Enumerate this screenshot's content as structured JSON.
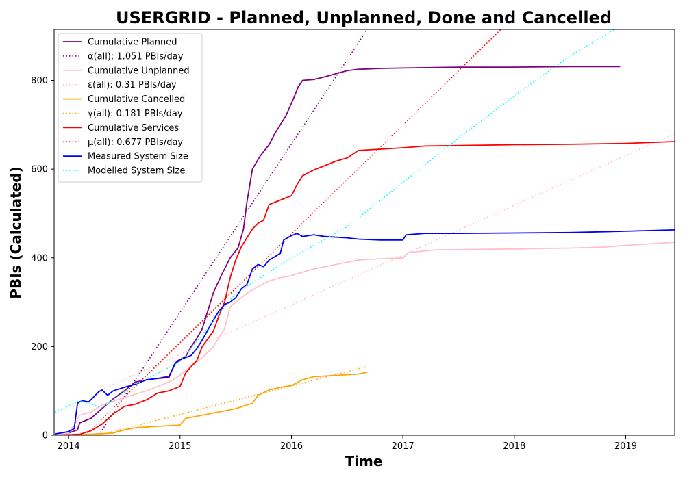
{
  "chart_data": {
    "type": "line",
    "title": "USERGRID - Planned, Unplanned, Done  and Cancelled",
    "xlabel": "Time",
    "ylabel": "PBIs (Calculated)",
    "xlim": [
      2013.87,
      2019.44
    ],
    "ylim": [
      0,
      915
    ],
    "x_ticks": [
      2014,
      2015,
      2016,
      2017,
      2018,
      2019
    ],
    "x_tick_labels": [
      "2014",
      "2015",
      "2016",
      "2017",
      "2018",
      "2019"
    ],
    "y_ticks": [
      0,
      200,
      400,
      600,
      800
    ],
    "y_tick_labels": [
      "0",
      "200",
      "400",
      "600",
      "800"
    ],
    "grid": false,
    "legend_position": "top-left",
    "series": [
      {
        "name": "Cumulative Planned",
        "color": "#800080",
        "style": "solid",
        "points": [
          [
            2013.88,
            0
          ],
          [
            2014.0,
            5
          ],
          [
            2014.08,
            12
          ],
          [
            2014.1,
            28
          ],
          [
            2014.2,
            38
          ],
          [
            2014.3,
            60
          ],
          [
            2014.4,
            82
          ],
          [
            2014.5,
            100
          ],
          [
            2014.6,
            120
          ],
          [
            2014.7,
            125
          ],
          [
            2014.8,
            128
          ],
          [
            2014.9,
            133
          ],
          [
            2014.97,
            167
          ],
          [
            2015.05,
            177
          ],
          [
            2015.1,
            200
          ],
          [
            2015.15,
            218
          ],
          [
            2015.2,
            240
          ],
          [
            2015.3,
            322
          ],
          [
            2015.38,
            365
          ],
          [
            2015.45,
            400
          ],
          [
            2015.52,
            422
          ],
          [
            2015.57,
            465
          ],
          [
            2015.6,
            525
          ],
          [
            2015.65,
            600
          ],
          [
            2015.72,
            630
          ],
          [
            2015.8,
            655
          ],
          [
            2015.85,
            680
          ],
          [
            2015.9,
            700
          ],
          [
            2015.95,
            720
          ],
          [
            2016.02,
            760
          ],
          [
            2016.06,
            785
          ],
          [
            2016.1,
            800
          ],
          [
            2016.2,
            802
          ],
          [
            2016.3,
            808
          ],
          [
            2016.4,
            815
          ],
          [
            2016.5,
            822
          ],
          [
            2016.6,
            825
          ],
          [
            2016.8,
            827
          ],
          [
            2017.0,
            828
          ],
          [
            2017.5,
            830
          ],
          [
            2018.0,
            830
          ],
          [
            2018.5,
            831
          ],
          [
            2018.95,
            831
          ]
        ]
      },
      {
        "name": "α(all): 1.051 PBIs/day",
        "color": "#800080",
        "style": "dotted",
        "points": [
          [
            2014.27,
            0
          ],
          [
            2016.68,
            915
          ]
        ]
      },
      {
        "name": "Cumulative Unplanned",
        "color": "#ffc0cb",
        "style": "solid",
        "points": [
          [
            2013.88,
            0
          ],
          [
            2014.0,
            5
          ],
          [
            2014.07,
            30
          ],
          [
            2014.1,
            45
          ],
          [
            2014.2,
            52
          ],
          [
            2014.3,
            68
          ],
          [
            2014.5,
            85
          ],
          [
            2014.7,
            100
          ],
          [
            2014.9,
            120
          ],
          [
            2015.0,
            135
          ],
          [
            2015.1,
            155
          ],
          [
            2015.2,
            175
          ],
          [
            2015.3,
            200
          ],
          [
            2015.35,
            220
          ],
          [
            2015.4,
            240
          ],
          [
            2015.45,
            290
          ],
          [
            2015.6,
            320
          ],
          [
            2015.7,
            335
          ],
          [
            2015.8,
            348
          ],
          [
            2015.9,
            355
          ],
          [
            2016.0,
            360
          ],
          [
            2016.2,
            375
          ],
          [
            2016.4,
            385
          ],
          [
            2016.6,
            395
          ],
          [
            2016.8,
            398
          ],
          [
            2017.0,
            400
          ],
          [
            2017.05,
            412
          ],
          [
            2017.3,
            418
          ],
          [
            2018.0,
            420
          ],
          [
            2018.5,
            422
          ],
          [
            2018.8,
            424
          ],
          [
            2019.0,
            428
          ],
          [
            2019.44,
            435
          ]
        ]
      },
      {
        "name": "ε(all): 0.31 PBIs/day",
        "color": "#ffc0cb",
        "style": "dotted",
        "points": [
          [
            2014.27,
            100
          ],
          [
            2019.44,
            680
          ]
        ]
      },
      {
        "name": "Cumulative Cancelled",
        "color": "#ffa500",
        "style": "solid",
        "points": [
          [
            2013.88,
            0
          ],
          [
            2014.2,
            2
          ],
          [
            2014.4,
            5
          ],
          [
            2014.5,
            12
          ],
          [
            2014.6,
            17
          ],
          [
            2014.8,
            20
          ],
          [
            2015.0,
            23
          ],
          [
            2015.05,
            38
          ],
          [
            2015.2,
            45
          ],
          [
            2015.4,
            55
          ],
          [
            2015.5,
            60
          ],
          [
            2015.6,
            68
          ],
          [
            2015.65,
            72
          ],
          [
            2015.7,
            90
          ],
          [
            2015.8,
            102
          ],
          [
            2015.9,
            108
          ],
          [
            2016.0,
            112
          ],
          [
            2016.1,
            125
          ],
          [
            2016.2,
            132
          ],
          [
            2016.4,
            135
          ],
          [
            2016.6,
            138
          ],
          [
            2016.68,
            142
          ]
        ]
      },
      {
        "name": "γ(all): 0.181 PBIs/day",
        "color": "#ffa500",
        "style": "dotted",
        "points": [
          [
            2014.27,
            0
          ],
          [
            2016.68,
            155
          ]
        ]
      },
      {
        "name": "Cumulative Services",
        "color": "#ff0000",
        "style": "solid",
        "points": [
          [
            2013.88,
            0
          ],
          [
            2014.1,
            2
          ],
          [
            2014.2,
            10
          ],
          [
            2014.3,
            25
          ],
          [
            2014.4,
            48
          ],
          [
            2014.5,
            65
          ],
          [
            2014.6,
            70
          ],
          [
            2014.7,
            80
          ],
          [
            2014.8,
            95
          ],
          [
            2014.9,
            100
          ],
          [
            2015.0,
            110
          ],
          [
            2015.05,
            140
          ],
          [
            2015.1,
            155
          ],
          [
            2015.15,
            168
          ],
          [
            2015.2,
            200
          ],
          [
            2015.3,
            235
          ],
          [
            2015.35,
            270
          ],
          [
            2015.4,
            300
          ],
          [
            2015.45,
            355
          ],
          [
            2015.5,
            395
          ],
          [
            2015.55,
            425
          ],
          [
            2015.6,
            445
          ],
          [
            2015.65,
            465
          ],
          [
            2015.7,
            478
          ],
          [
            2015.75,
            485
          ],
          [
            2015.8,
            520
          ],
          [
            2015.9,
            530
          ],
          [
            2016.0,
            540
          ],
          [
            2016.05,
            565
          ],
          [
            2016.1,
            585
          ],
          [
            2016.2,
            598
          ],
          [
            2016.3,
            608
          ],
          [
            2016.4,
            618
          ],
          [
            2016.5,
            625
          ],
          [
            2016.6,
            642
          ],
          [
            2016.8,
            645
          ],
          [
            2017.0,
            648
          ],
          [
            2017.2,
            652
          ],
          [
            2018.0,
            655
          ],
          [
            2018.5,
            656
          ],
          [
            2019.0,
            658
          ],
          [
            2019.44,
            662
          ]
        ]
      },
      {
        "name": "μ(all): 0.677 PBIs/day",
        "color": "#ff0000",
        "style": "dotted",
        "points": [
          [
            2014.15,
            0
          ],
          [
            2017.88,
            915
          ]
        ]
      },
      {
        "name": "Measured System Size",
        "color": "#0000ff",
        "style": "solid",
        "points": [
          [
            2013.88,
            3
          ],
          [
            2014.0,
            8
          ],
          [
            2014.05,
            15
          ],
          [
            2014.08,
            72
          ],
          [
            2014.12,
            78
          ],
          [
            2014.18,
            75
          ],
          [
            2014.2,
            80
          ],
          [
            2014.27,
            98
          ],
          [
            2014.3,
            102
          ],
          [
            2014.35,
            90
          ],
          [
            2014.4,
            100
          ],
          [
            2014.5,
            108
          ],
          [
            2014.6,
            115
          ],
          [
            2014.65,
            120
          ],
          [
            2014.7,
            125
          ],
          [
            2014.8,
            128
          ],
          [
            2014.9,
            130
          ],
          [
            2014.95,
            160
          ],
          [
            2015.0,
            170
          ],
          [
            2015.05,
            175
          ],
          [
            2015.1,
            180
          ],
          [
            2015.15,
            195
          ],
          [
            2015.2,
            215
          ],
          [
            2015.3,
            260
          ],
          [
            2015.35,
            280
          ],
          [
            2015.4,
            295
          ],
          [
            2015.45,
            300
          ],
          [
            2015.5,
            310
          ],
          [
            2015.55,
            330
          ],
          [
            2015.6,
            340
          ],
          [
            2015.65,
            375
          ],
          [
            2015.7,
            385
          ],
          [
            2015.75,
            380
          ],
          [
            2015.8,
            395
          ],
          [
            2015.9,
            410
          ],
          [
            2015.93,
            440
          ],
          [
            2016.0,
            450
          ],
          [
            2016.05,
            455
          ],
          [
            2016.1,
            448
          ],
          [
            2016.2,
            452
          ],
          [
            2016.3,
            448
          ],
          [
            2016.5,
            445
          ],
          [
            2016.6,
            442
          ],
          [
            2016.8,
            440
          ],
          [
            2017.0,
            440
          ],
          [
            2017.03,
            452
          ],
          [
            2017.2,
            455
          ],
          [
            2017.5,
            455
          ],
          [
            2018.0,
            456
          ],
          [
            2018.5,
            457
          ],
          [
            2019.0,
            460
          ],
          [
            2019.44,
            463
          ]
        ]
      },
      {
        "name": "Modelled System Size",
        "color": "#00ffff",
        "style": "dotted",
        "points": [
          [
            2013.88,
            52
          ],
          [
            2014.1,
            78
          ],
          [
            2014.2,
            70
          ],
          [
            2014.3,
            62
          ],
          [
            2014.6,
            115
          ],
          [
            2015.0,
            165
          ],
          [
            2015.5,
            320
          ],
          [
            2016.0,
            400
          ],
          [
            2016.5,
            470
          ],
          [
            2017.0,
            570
          ],
          [
            2017.5,
            670
          ],
          [
            2018.0,
            765
          ],
          [
            2018.5,
            855
          ],
          [
            2018.9,
            915
          ]
        ]
      }
    ]
  }
}
